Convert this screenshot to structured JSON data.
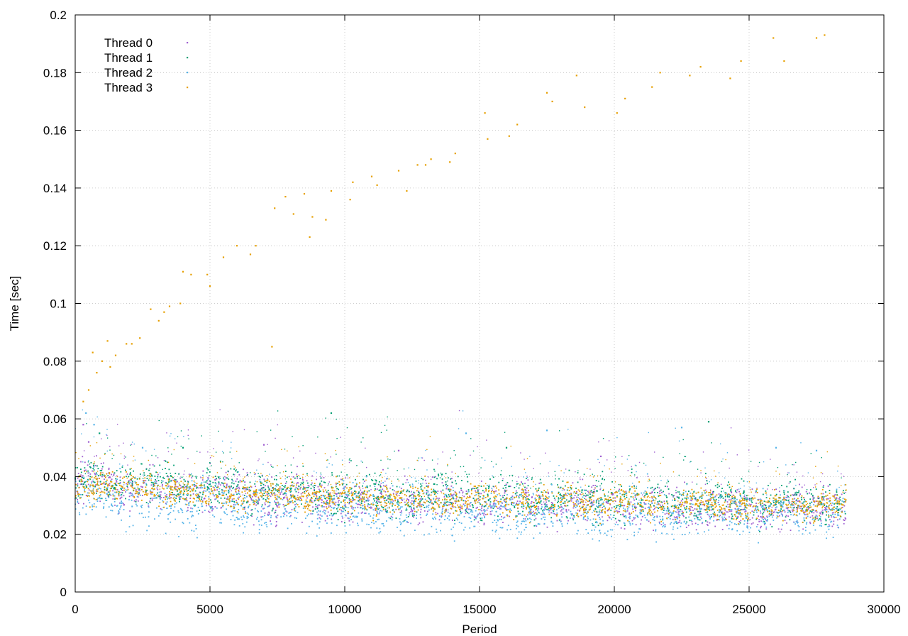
{
  "chart_data": {
    "type": "scatter",
    "xlabel": "Period",
    "ylabel": "Time [sec]",
    "xlim": [
      0,
      30000
    ],
    "ylim": [
      0,
      0.2
    ],
    "x_ticks": [
      "0",
      "5000",
      "10000",
      "15000",
      "20000",
      "25000",
      "30000"
    ],
    "y_ticks": [
      "0",
      "0.02",
      "0.04",
      "0.06",
      "0.08",
      "0.1",
      "0.12",
      "0.14",
      "0.16",
      "0.18",
      "0.2"
    ],
    "grid": true,
    "legend_position": "top-left",
    "x_max_data": 28600,
    "series": [
      {
        "name": "Thread 0",
        "color": "#9f5fd0",
        "trend": [
          [
            0,
            0.037
          ],
          [
            600,
            0.038
          ],
          [
            2000,
            0.036
          ],
          [
            5000,
            0.034
          ],
          [
            10000,
            0.032
          ],
          [
            15000,
            0.031
          ],
          [
            20000,
            0.03
          ],
          [
            25000,
            0.029
          ],
          [
            28600,
            0.029
          ]
        ],
        "spread": 0.0035,
        "outliers": [
          [
            300,
            0.058
          ],
          [
            500,
            0.052
          ],
          [
            7000,
            0.051
          ],
          [
            12000,
            0.049
          ],
          [
            19500,
            0.047
          ]
        ]
      },
      {
        "name": "Thread 1",
        "color": "#009e73",
        "trend": [
          [
            0,
            0.038
          ],
          [
            600,
            0.039
          ],
          [
            2000,
            0.038
          ],
          [
            5000,
            0.036
          ],
          [
            10000,
            0.034
          ],
          [
            15000,
            0.033
          ],
          [
            20000,
            0.032
          ],
          [
            25000,
            0.031
          ],
          [
            28600,
            0.031
          ]
        ],
        "spread": 0.0035,
        "outliers": [
          [
            900,
            0.055
          ],
          [
            4000,
            0.05
          ],
          [
            9500,
            0.062
          ],
          [
            16000,
            0.05
          ],
          [
            23500,
            0.059
          ]
        ]
      },
      {
        "name": "Thread 2",
        "color": "#56b4e9",
        "trend": [
          [
            0,
            0.034
          ],
          [
            600,
            0.034
          ],
          [
            2000,
            0.031
          ],
          [
            5000,
            0.03
          ],
          [
            10000,
            0.029
          ],
          [
            15000,
            0.028
          ],
          [
            20000,
            0.027
          ],
          [
            25000,
            0.027
          ],
          [
            28600,
            0.026
          ]
        ],
        "spread": 0.004,
        "outliers": [
          [
            400,
            0.062
          ],
          [
            700,
            0.058
          ],
          [
            2500,
            0.05
          ],
          [
            14500,
            0.055
          ],
          [
            17500,
            0.056
          ],
          [
            22500,
            0.057
          ],
          [
            26000,
            0.05
          ],
          [
            27500,
            0.049
          ]
        ]
      },
      {
        "name": "Thread 3",
        "color": "#e69f00",
        "trend": [
          [
            0,
            0.036
          ],
          [
            600,
            0.037
          ],
          [
            2000,
            0.036
          ],
          [
            5000,
            0.034
          ],
          [
            10000,
            0.033
          ],
          [
            15000,
            0.032
          ],
          [
            20000,
            0.031
          ],
          [
            25000,
            0.03
          ],
          [
            28600,
            0.03
          ]
        ],
        "spread": 0.0025,
        "outliers": [
          [
            300,
            0.066
          ],
          [
            500,
            0.07
          ],
          [
            650,
            0.083
          ],
          [
            800,
            0.076
          ],
          [
            1000,
            0.08
          ],
          [
            1200,
            0.087
          ],
          [
            1300,
            0.078
          ],
          [
            1500,
            0.082
          ],
          [
            1900,
            0.086
          ],
          [
            2100,
            0.086
          ],
          [
            2400,
            0.088
          ],
          [
            2800,
            0.098
          ],
          [
            3100,
            0.094
          ],
          [
            3300,
            0.097
          ],
          [
            3500,
            0.099
          ],
          [
            3900,
            0.1
          ],
          [
            4000,
            0.111
          ],
          [
            4300,
            0.11
          ],
          [
            4900,
            0.11
          ],
          [
            5000,
            0.106
          ],
          [
            5500,
            0.116
          ],
          [
            6000,
            0.12
          ],
          [
            6500,
            0.117
          ],
          [
            6700,
            0.12
          ],
          [
            7300,
            0.085
          ],
          [
            7400,
            0.133
          ],
          [
            7800,
            0.137
          ],
          [
            8100,
            0.131
          ],
          [
            8500,
            0.138
          ],
          [
            8700,
            0.123
          ],
          [
            8800,
            0.13
          ],
          [
            9300,
            0.129
          ],
          [
            9500,
            0.139
          ],
          [
            10200,
            0.136
          ],
          [
            10300,
            0.142
          ],
          [
            11000,
            0.144
          ],
          [
            11200,
            0.141
          ],
          [
            12000,
            0.146
          ],
          [
            12300,
            0.139
          ],
          [
            12700,
            0.148
          ],
          [
            13000,
            0.148
          ],
          [
            13200,
            0.15
          ],
          [
            13900,
            0.149
          ],
          [
            14100,
            0.152
          ],
          [
            15200,
            0.166
          ],
          [
            15300,
            0.157
          ],
          [
            16100,
            0.158
          ],
          [
            16400,
            0.162
          ],
          [
            17500,
            0.173
          ],
          [
            17700,
            0.17
          ],
          [
            18600,
            0.179
          ],
          [
            18900,
            0.168
          ],
          [
            20100,
            0.166
          ],
          [
            20400,
            0.171
          ],
          [
            21400,
            0.175
          ],
          [
            21700,
            0.18
          ],
          [
            22800,
            0.179
          ],
          [
            23200,
            0.182
          ],
          [
            24300,
            0.178
          ],
          [
            24700,
            0.184
          ],
          [
            25900,
            0.192
          ],
          [
            26300,
            0.184
          ],
          [
            27500,
            0.192
          ],
          [
            27800,
            0.193
          ]
        ]
      }
    ]
  }
}
